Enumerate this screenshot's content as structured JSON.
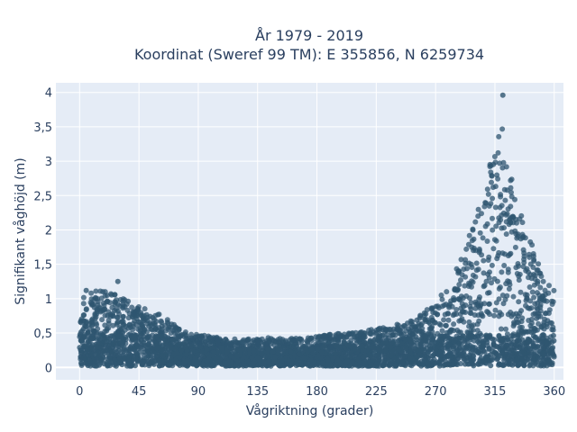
{
  "chart_data": {
    "type": "scatter",
    "title_lines": [
      "År 1979 - 2019",
      "Koordinat (Sweref 99 TM): E 355856, N 6259734"
    ],
    "xlabel": "Vågriktning (grader)",
    "ylabel": "Signifikant våghöjd (m)",
    "xlim": [
      -18,
      367
    ],
    "ylim": [
      -0.18,
      4.14
    ],
    "x_ticks": [
      0,
      45,
      90,
      135,
      180,
      225,
      270,
      315,
      360
    ],
    "x_tick_labels": [
      "0",
      "45",
      "90",
      "135",
      "180",
      "225",
      "270",
      "315",
      "360"
    ],
    "y_ticks": [
      0,
      0.5,
      1,
      1.5,
      2,
      2.5,
      3,
      3.5,
      4
    ],
    "y_tick_labels": [
      "0",
      "0,5",
      "1",
      "1,5",
      "2",
      "2,5",
      "3",
      "3,5",
      "4"
    ],
    "grid": true,
    "legend": "none",
    "marker_color": "#2f5670",
    "plot_background": "#e5ecf6",
    "envelope_note_points": {
      "x": [
        0,
        5,
        10,
        15,
        20,
        25,
        30,
        35,
        40,
        45,
        50,
        55,
        60,
        65,
        70,
        75,
        80,
        90,
        100,
        110,
        120,
        130,
        140,
        150,
        160,
        170,
        180,
        190,
        200,
        210,
        220,
        230,
        240,
        250,
        260,
        270,
        280,
        285,
        290,
        295,
        300,
        305,
        310,
        315,
        318,
        320,
        322,
        325,
        330,
        335,
        340,
        345,
        350,
        355,
        360
      ],
      "y_max": [
        1.05,
        1.1,
        1.1,
        1.12,
        1.12,
        1.1,
        1.08,
        1.0,
        0.95,
        0.9,
        0.85,
        0.8,
        0.78,
        0.72,
        0.65,
        0.58,
        0.52,
        0.48,
        0.45,
        0.43,
        0.42,
        0.42,
        0.43,
        0.43,
        0.42,
        0.45,
        0.45,
        0.48,
        0.5,
        0.52,
        0.55,
        0.58,
        0.62,
        0.68,
        0.78,
        0.95,
        1.2,
        1.4,
        1.6,
        1.9,
        2.2,
        2.5,
        2.85,
        3.3,
        3.52,
        3.55,
        3.3,
        3.0,
        2.55,
        2.35,
        2.0,
        1.7,
        1.4,
        1.25,
        1.2
      ]
    },
    "outliers": [
      {
        "x": 321,
        "y": 3.96
      },
      {
        "x": 29,
        "y": 1.25
      },
      {
        "x": 5,
        "y": 1.12
      }
    ]
  }
}
